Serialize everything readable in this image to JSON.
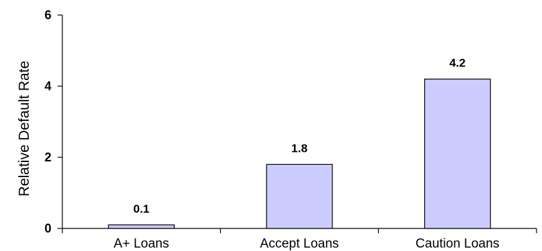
{
  "chart_data": {
    "type": "bar",
    "title": "",
    "xlabel": "",
    "ylabel": "Relative Default Rate",
    "categories": [
      "A+ Loans",
      "Accept Loans",
      "Caution Loans"
    ],
    "values": [
      0.1,
      1.8,
      4.2
    ],
    "value_labels": [
      "0.1",
      "1.8",
      "4.2"
    ],
    "yticks": [
      0,
      2,
      4,
      6
    ],
    "ytick_labels": [
      "0",
      "2",
      "4",
      "6"
    ],
    "ylim": [
      0,
      6
    ],
    "grid": false,
    "legend": "none",
    "bar_fill": "#ccccff",
    "bar_stroke": "#000000",
    "axis_color": "#000000"
  }
}
